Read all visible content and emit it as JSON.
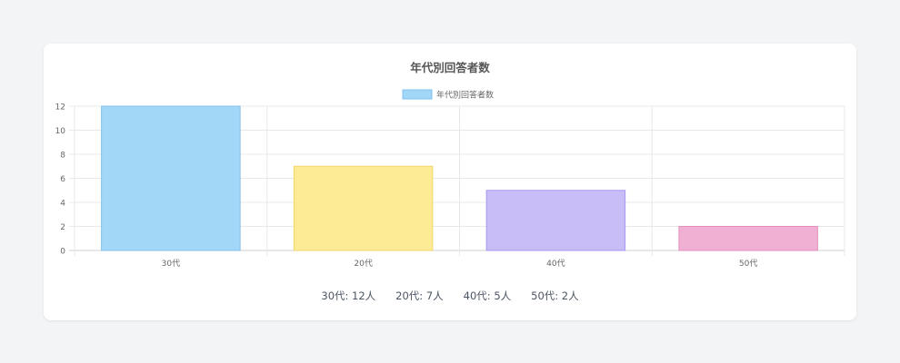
{
  "chart_data": {
    "type": "bar",
    "title": "年代別回答者数",
    "legend": {
      "label": "年代別回答者数",
      "position": "top"
    },
    "categories": [
      "30代",
      "20代",
      "40代",
      "50代"
    ],
    "series": [
      {
        "name": "年代別回答者数",
        "values": [
          12,
          7,
          5,
          2
        ]
      }
    ],
    "colors": {
      "fill": [
        "#a3d7f7",
        "#fdeb95",
        "#c8bdf7",
        "#f0b0d4"
      ],
      "stroke": [
        "#7fc0ec",
        "#f2d66a",
        "#a998ee",
        "#e38fbd"
      ]
    },
    "ylim": [
      0,
      12
    ],
    "yticks": [
      0,
      2,
      4,
      6,
      8,
      10,
      12
    ],
    "grid": true,
    "xlabel": "",
    "ylabel": ""
  },
  "summary": [
    {
      "text": "30代: 12人"
    },
    {
      "text": "20代: 7人"
    },
    {
      "text": "40代: 5人"
    },
    {
      "text": "50代: 2人"
    }
  ]
}
